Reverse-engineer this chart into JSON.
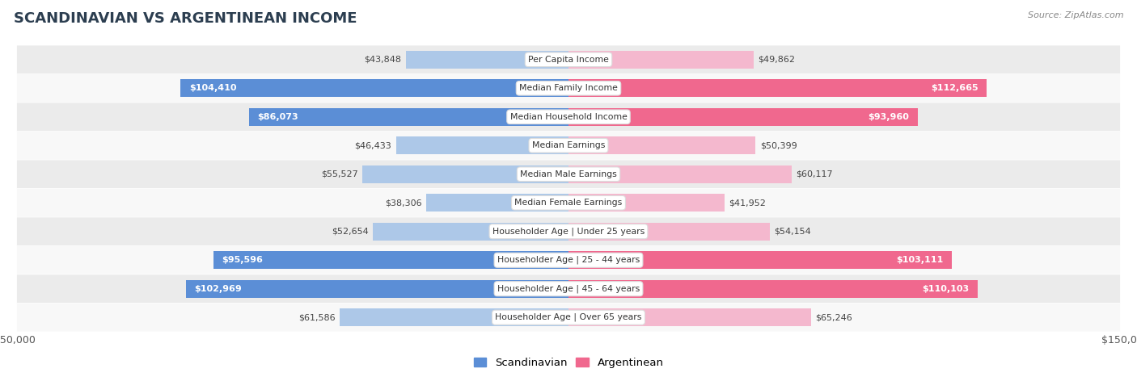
{
  "title": "SCANDINAVIAN VS ARGENTINEAN INCOME",
  "source": "Source: ZipAtlas.com",
  "categories": [
    "Per Capita Income",
    "Median Family Income",
    "Median Household Income",
    "Median Earnings",
    "Median Male Earnings",
    "Median Female Earnings",
    "Householder Age | Under 25 years",
    "Householder Age | 25 - 44 years",
    "Householder Age | 45 - 64 years",
    "Householder Age | Over 65 years"
  ],
  "scandinavian": [
    43848,
    104410,
    86073,
    46433,
    55527,
    38306,
    52654,
    95596,
    102969,
    61586
  ],
  "argentinean": [
    49862,
    112665,
    93960,
    50399,
    60117,
    41952,
    54154,
    103111,
    110103,
    65246
  ],
  "max_val": 150000,
  "scand_color_light": "#adc8e8",
  "scand_color_dark": "#5b8ed6",
  "arg_color_light": "#f4b8ce",
  "arg_color_dark": "#f0688e",
  "threshold_dark": 80000,
  "bar_height": 0.62,
  "fig_bg": "#ffffff",
  "row_bg_even": "#ebebeb",
  "row_bg_odd": "#f8f8f8"
}
